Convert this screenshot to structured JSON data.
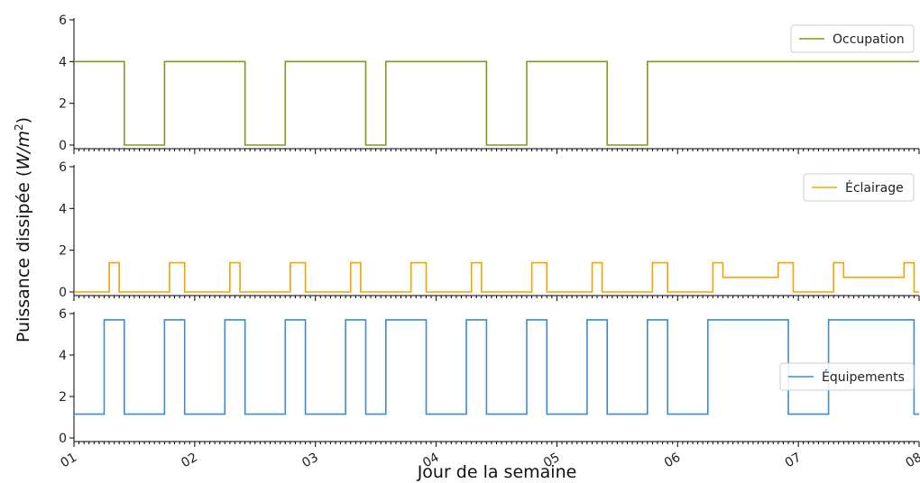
{
  "chart_data": {
    "type": "line",
    "ylabel": "Puissance dissipée (W/m²)",
    "ylabel_parts": {
      "prefix": "Puissance dissipée (",
      "unit": "W/m",
      "exp": "2",
      "suffix": ")"
    },
    "xlabel": "Jour de la semaine",
    "x_unit": "days",
    "xlim": [
      0,
      7
    ],
    "x_ticks": [
      0,
      1,
      2,
      3,
      4,
      5,
      6,
      7
    ],
    "x_tick_labels": [
      "01",
      "02",
      "03",
      "04",
      "05",
      "06",
      "07",
      "08"
    ],
    "panels": [
      {
        "ylim": [
          0,
          6
        ],
        "y_ticks": [
          0,
          2,
          4,
          6
        ],
        "legend_position": "top-right",
        "series": [
          {
            "name": "Occupation",
            "color": "#7f9a1b",
            "steps": [
              [
                0,
                4
              ],
              [
                0.417,
                0
              ],
              [
                0.75,
                4
              ],
              [
                1.417,
                0
              ],
              [
                1.75,
                4
              ],
              [
                2.417,
                0
              ],
              [
                2.583,
                4
              ],
              [
                3.417,
                0
              ],
              [
                3.75,
                4
              ],
              [
                4.417,
                0
              ],
              [
                4.75,
                4
              ],
              [
                7,
                4
              ]
            ]
          }
        ]
      },
      {
        "ylim": [
          0,
          6
        ],
        "y_ticks": [
          0,
          2,
          4,
          6
        ],
        "legend_position": "top-right",
        "series": [
          {
            "name": "Éclairage",
            "color": "#f5a300",
            "steps": [
              [
                0,
                0
              ],
              [
                0.292,
                1.4
              ],
              [
                0.375,
                0
              ],
              [
                0.792,
                1.4
              ],
              [
                0.917,
                0
              ],
              [
                1.292,
                1.4
              ],
              [
                1.375,
                0
              ],
              [
                1.792,
                1.4
              ],
              [
                1.917,
                0
              ],
              [
                2.292,
                1.4
              ],
              [
                2.375,
                0
              ],
              [
                2.792,
                1.4
              ],
              [
                2.917,
                0
              ],
              [
                3.292,
                1.4
              ],
              [
                3.375,
                0
              ],
              [
                3.792,
                1.4
              ],
              [
                3.917,
                0
              ],
              [
                4.292,
                1.4
              ],
              [
                4.375,
                0
              ],
              [
                4.792,
                1.4
              ],
              [
                4.917,
                0
              ],
              [
                5.292,
                1.4
              ],
              [
                5.375,
                0.7
              ],
              [
                5.833,
                1.4
              ],
              [
                5.958,
                0
              ],
              [
                6.292,
                1.4
              ],
              [
                6.375,
                0.7
              ],
              [
                6.875,
                1.4
              ],
              [
                6.958,
                0
              ],
              [
                7,
                0
              ]
            ]
          }
        ]
      },
      {
        "ylim": [
          0,
          6
        ],
        "y_ticks": [
          0,
          2,
          4,
          6
        ],
        "legend_position": "center-right",
        "series": [
          {
            "name": "Équipements",
            "color": "#3a8bd1",
            "steps": [
              [
                0,
                1.15
              ],
              [
                0.25,
                5.7
              ],
              [
                0.417,
                1.15
              ],
              [
                0.75,
                5.7
              ],
              [
                0.917,
                1.15
              ],
              [
                1.25,
                5.7
              ],
              [
                1.417,
                1.15
              ],
              [
                1.75,
                5.7
              ],
              [
                1.917,
                1.15
              ],
              [
                2.25,
                5.7
              ],
              [
                2.417,
                1.15
              ],
              [
                2.583,
                5.7
              ],
              [
                2.917,
                1.15
              ],
              [
                3.25,
                5.7
              ],
              [
                3.417,
                1.15
              ],
              [
                3.75,
                5.7
              ],
              [
                3.917,
                1.15
              ],
              [
                4.25,
                5.7
              ],
              [
                4.417,
                1.15
              ],
              [
                4.75,
                5.7
              ],
              [
                4.917,
                1.15
              ],
              [
                5.25,
                5.7
              ],
              [
                5.917,
                1.15
              ],
              [
                6.25,
                5.7
              ],
              [
                6.958,
                1.15
              ],
              [
                7,
                1.15
              ]
            ]
          }
        ]
      }
    ]
  }
}
